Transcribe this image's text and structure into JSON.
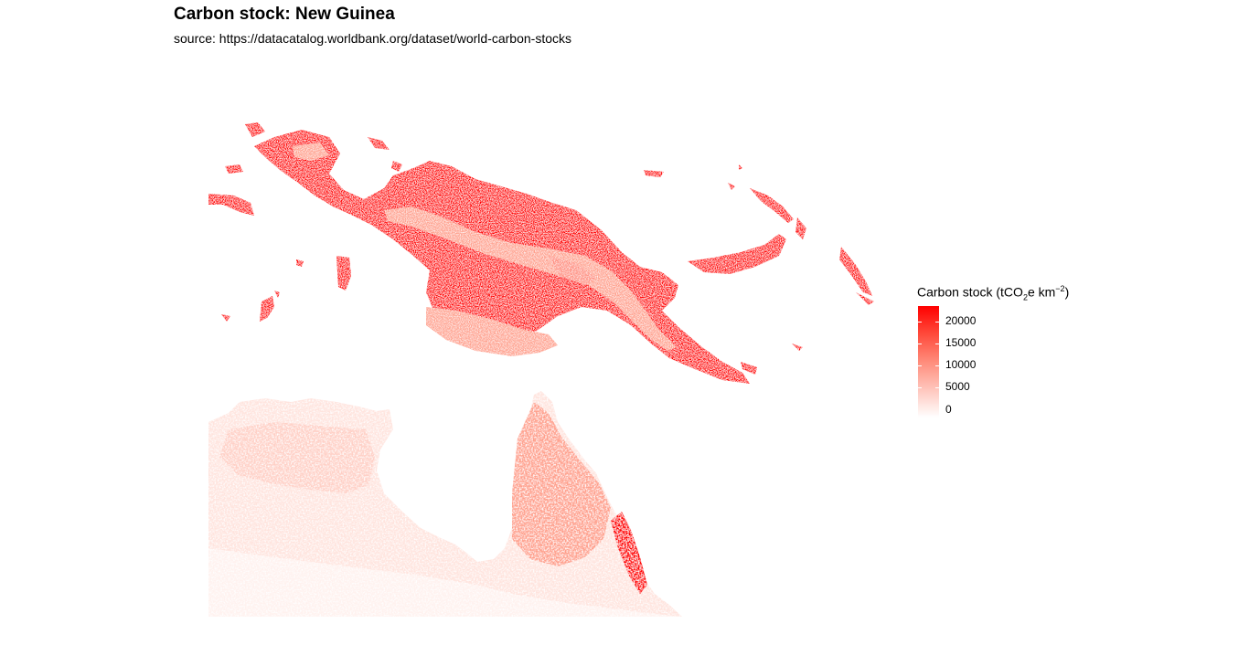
{
  "title": "Carbon stock: New Guinea",
  "subtitle": "source: https://datacatalog.worldbank.org/dataset/world-carbon-stocks",
  "legend": {
    "title_main": "Carbon stock (tCO",
    "title_sub": "2",
    "title_mid": "e km",
    "title_sup": "−2",
    "title_end": ")",
    "ticks": [
      "20000",
      "15000",
      "10000",
      "5000",
      "0"
    ],
    "scale_colors": [
      "#ff0000",
      "#ff8c7b",
      "#ffffff"
    ]
  },
  "map": {
    "region": "New Guinea",
    "high_color": "#ff0000",
    "mid_color": "#ffa08c",
    "low_color": "#ffe4de"
  }
}
